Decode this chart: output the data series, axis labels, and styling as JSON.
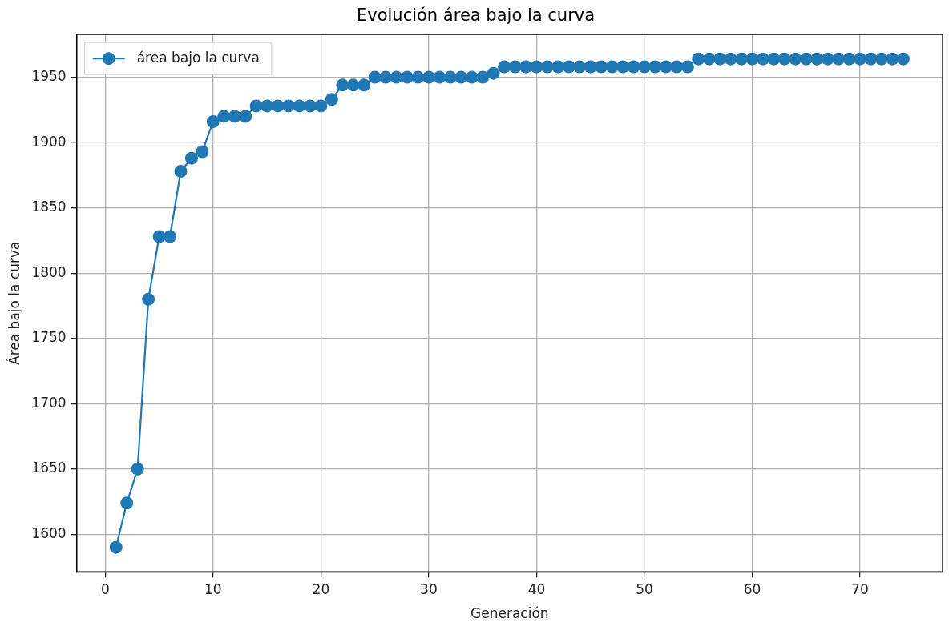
{
  "chart_data": {
    "type": "line",
    "title": "Evolución área bajo la curva",
    "xlabel": "Generación",
    "ylabel": "Área bajo la curva",
    "x": [
      1,
      2,
      3,
      4,
      5,
      6,
      7,
      8,
      9,
      10,
      11,
      12,
      13,
      14,
      15,
      16,
      17,
      18,
      19,
      20,
      21,
      22,
      23,
      24,
      25,
      26,
      27,
      28,
      29,
      30,
      31,
      32,
      33,
      34,
      35,
      36,
      37,
      38,
      39,
      40,
      41,
      42,
      43,
      44,
      45,
      46,
      47,
      48,
      49,
      50,
      51,
      52,
      53,
      54,
      55,
      56,
      57,
      58,
      59,
      60,
      61,
      62,
      63,
      64,
      65,
      66,
      67,
      68,
      69,
      70,
      71,
      72,
      73,
      74
    ],
    "series": [
      {
        "name": "área bajo la curva",
        "color": "#1f77b4",
        "values": [
          1590,
          1624,
          1650,
          1780,
          1828,
          1828,
          1878,
          1888,
          1893,
          1916,
          1920,
          1920,
          1920,
          1928,
          1928,
          1928,
          1928,
          1928,
          1928,
          1928,
          1933,
          1944,
          1944,
          1944,
          1950,
          1950,
          1950,
          1950,
          1950,
          1950,
          1950,
          1950,
          1950,
          1950,
          1950,
          1953,
          1958,
          1958,
          1958,
          1958,
          1958,
          1958,
          1958,
          1958,
          1958,
          1958,
          1958,
          1958,
          1958,
          1958,
          1958,
          1958,
          1958,
          1958,
          1964,
          1964,
          1964,
          1964,
          1964,
          1964,
          1964,
          1964,
          1964,
          1964,
          1964,
          1964,
          1964,
          1964,
          1964,
          1964,
          1964,
          1964,
          1964,
          1964
        ]
      }
    ],
    "xlim": [
      -2.65,
      77.65
    ],
    "xticks": [
      0,
      10,
      20,
      30,
      40,
      50,
      60,
      70
    ],
    "ylim": [
      1571.3,
      1982.7
    ],
    "yticks": [
      1600,
      1650,
      1700,
      1750,
      1800,
      1850,
      1900,
      1950
    ],
    "grid": true,
    "legend": "top left",
    "marker": "circle",
    "line_style": "solid"
  }
}
